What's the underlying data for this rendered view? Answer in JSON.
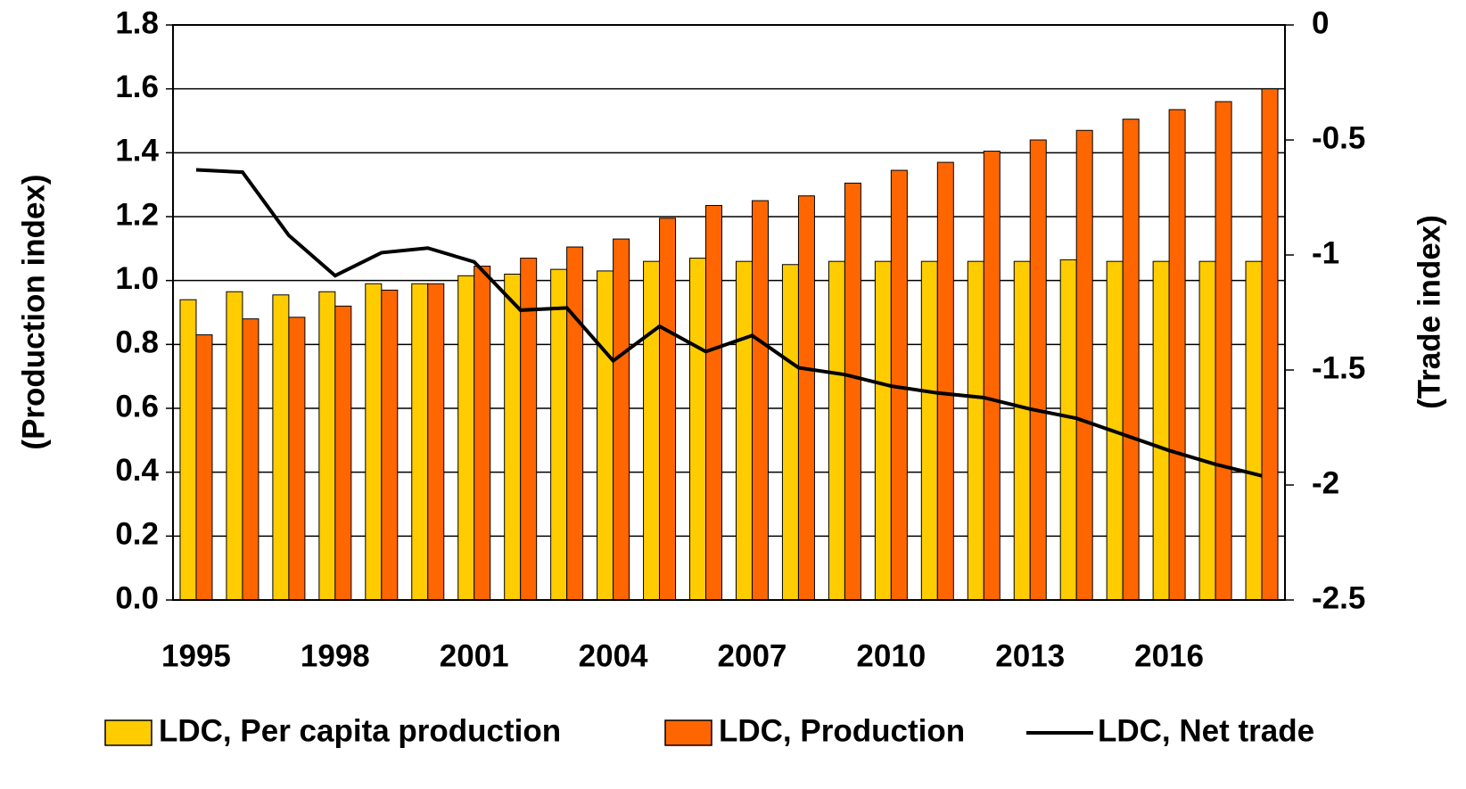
{
  "chart_data": {
    "type": "bar",
    "categories": [
      "1995",
      null,
      null,
      "1998",
      null,
      null,
      "2001",
      null,
      null,
      "2004",
      null,
      null,
      "2007",
      null,
      null,
      "2010",
      null,
      null,
      "2013",
      null,
      null,
      "2016",
      null,
      null
    ],
    "series": [
      {
        "name": "LDC, Per capita production",
        "color": "#ffcc00",
        "values": [
          0.94,
          0.965,
          0.955,
          0.965,
          0.99,
          0.99,
          1.015,
          1.02,
          1.035,
          1.03,
          1.06,
          1.07,
          1.06,
          1.05,
          1.06,
          1.06,
          1.06,
          1.06,
          1.06,
          1.065,
          1.06,
          1.06,
          1.06,
          1.06
        ]
      },
      {
        "name": "LDC,  Production",
        "color": "#ff6600",
        "values": [
          0.83,
          0.88,
          0.885,
          0.92,
          0.97,
          0.99,
          1.045,
          1.07,
          1.105,
          1.13,
          1.195,
          1.235,
          1.25,
          1.265,
          1.305,
          1.345,
          1.37,
          1.405,
          1.44,
          1.47,
          1.505,
          1.535,
          1.56,
          1.6
        ]
      },
      {
        "name": "LDC,  Net trade",
        "color": "#000000",
        "axis": "y2",
        "type": "line",
        "values": [
          -0.63,
          -0.64,
          -0.915,
          -1.09,
          -0.99,
          -0.97,
          -1.03,
          -1.24,
          -1.23,
          -1.46,
          -1.31,
          -1.42,
          -1.35,
          -1.49,
          -1.52,
          -1.57,
          -1.6,
          -1.62,
          -1.67,
          -1.71,
          -1.78,
          -1.85,
          -1.91,
          -1.96
        ]
      }
    ],
    "y_label": "(Production index)",
    "y2_label": "(Trade index)",
    "ylim": [
      0,
      1.8
    ],
    "yticks": [
      {
        "value": 0,
        "label": "0.0"
      },
      0.2,
      0.4,
      0.6,
      0.8,
      {
        "value": 1,
        "label": "1.0"
      },
      1.2,
      1.4,
      1.6,
      1.8
    ],
    "y2lim": [
      -2.5,
      0
    ],
    "y2ticks": [
      0,
      -0.5,
      -1,
      -1.5,
      -2,
      -2.5
    ],
    "grid": true,
    "legend": "bottom"
  }
}
